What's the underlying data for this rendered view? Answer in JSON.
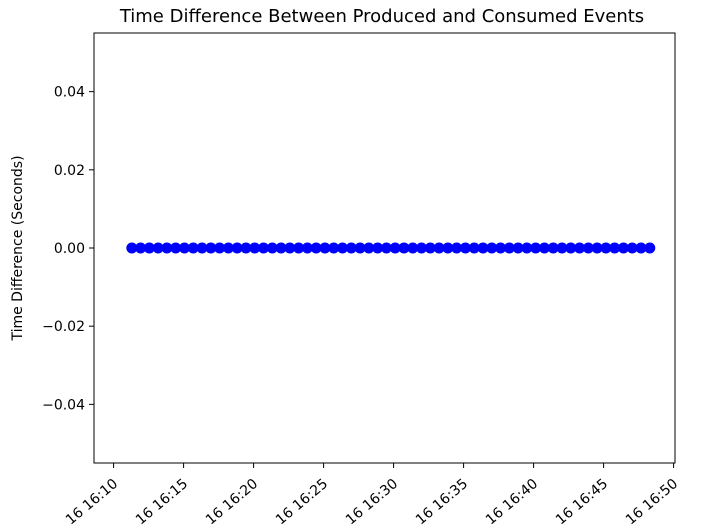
{
  "chart_data": {
    "type": "scatter",
    "title": "Time Difference Between Produced and Consumed Events",
    "xlabel": "",
    "ylabel": "Time Difference (Seconds)",
    "x_axis": {
      "kind": "datetime",
      "range": [
        "16:08.6",
        "16:50.1"
      ],
      "ticks": [
        "16:10",
        "16:15",
        "16:20",
        "16:25",
        "16:30",
        "16:35",
        "16:40",
        "16:45",
        "16:50"
      ],
      "tick_labels": [
        "16 16:10",
        "16 16:15",
        "16 16:20",
        "16 16:25",
        "16 16:30",
        "16 16:35",
        "16 16:40",
        "16 16:45",
        "16 16:50"
      ]
    },
    "y_axis": {
      "range": [
        -0.055,
        0.055
      ],
      "ticks": [
        0.04,
        0.02,
        0.0,
        -0.02,
        -0.04
      ],
      "tick_labels": [
        "0.04",
        "0.02",
        "0.00",
        "−0.02",
        "−0.04"
      ]
    },
    "series": [
      {
        "color": "#0000ff",
        "marker": "circle",
        "x_start": "16:11.3",
        "x_end": "16:48.3",
        "point_count": 60,
        "y_value": 0.0
      }
    ],
    "grid": false,
    "legend": "none"
  }
}
